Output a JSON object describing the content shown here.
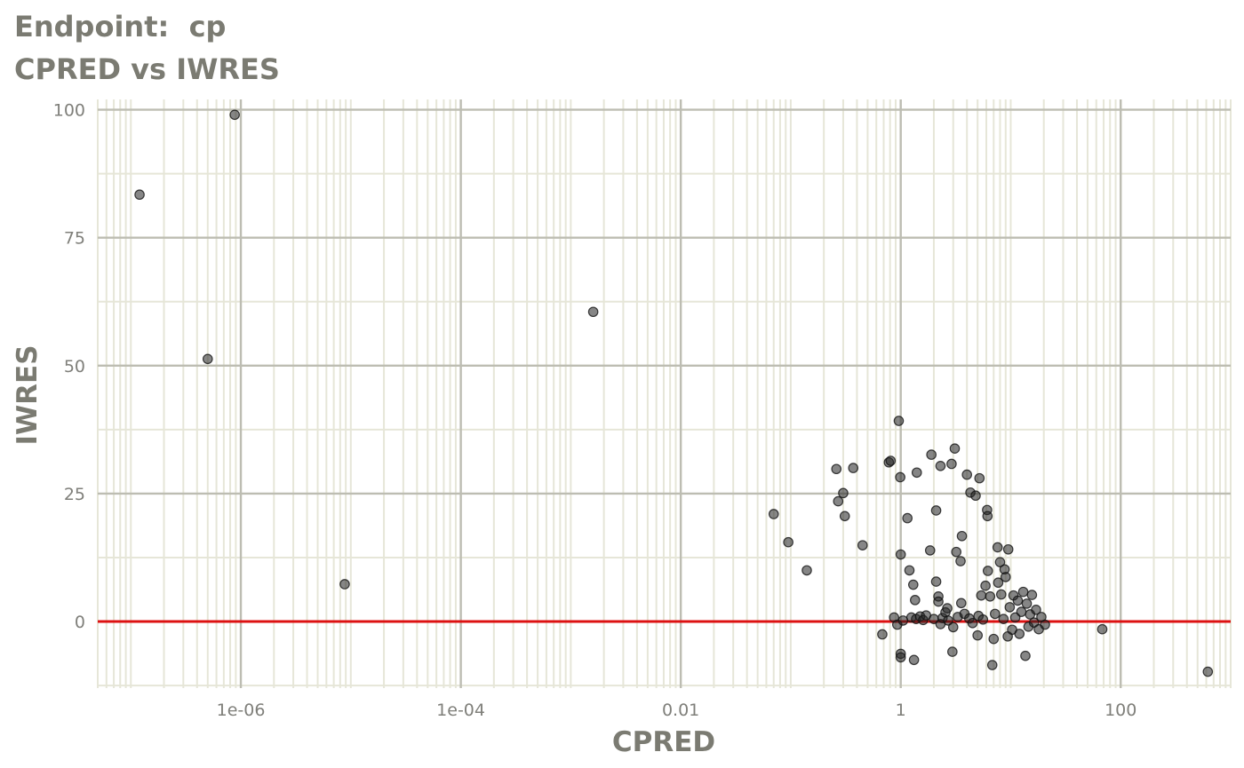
{
  "title_line1": "Endpoint:  cp",
  "title_line2": "CPRED vs IWRES",
  "chart_data": {
    "type": "scatter",
    "title": "Endpoint:  cp",
    "subtitle": "CPRED vs IWRES",
    "xlabel": "CPRED",
    "ylabel": "IWRES",
    "x_scale": "log10",
    "xlim": [
      5e-08,
      1000
    ],
    "ylim": [
      -13,
      102
    ],
    "x_ticks": [
      {
        "value": 1e-06,
        "label": "1e-06"
      },
      {
        "value": 0.0001,
        "label": "1e-04"
      },
      {
        "value": 0.01,
        "label": "0.01"
      },
      {
        "value": 1,
        "label": "1"
      },
      {
        "value": 100,
        "label": "100"
      }
    ],
    "y_ticks": [
      {
        "value": 0,
        "label": "0"
      },
      {
        "value": 25,
        "label": "25"
      },
      {
        "value": 50,
        "label": "50"
      },
      {
        "value": 75,
        "label": "75"
      },
      {
        "value": 100,
        "label": "100"
      }
    ],
    "grid": true,
    "reference_line": {
      "y": 0,
      "color": "#dd1111"
    },
    "colors": {
      "point": "#222222",
      "major_grid": "#bdbdb2",
      "minor_grid": "#e6e6d8",
      "text": "#7b7b72"
    },
    "points": [
      {
        "x": 1.2e-07,
        "y": 83.4
      },
      {
        "x": 5e-07,
        "y": 51.3
      },
      {
        "x": 8.8e-07,
        "y": 99.0
      },
      {
        "x": 8.8e-06,
        "y": 7.3
      },
      {
        "x": 0.0016,
        "y": 60.5
      },
      {
        "x": 0.07,
        "y": 21.0
      },
      {
        "x": 0.095,
        "y": 15.5
      },
      {
        "x": 0.14,
        "y": 10.0
      },
      {
        "x": 0.26,
        "y": 29.8
      },
      {
        "x": 0.27,
        "y": 23.5
      },
      {
        "x": 0.3,
        "y": 25.1
      },
      {
        "x": 0.31,
        "y": 20.6
      },
      {
        "x": 0.37,
        "y": 30.0
      },
      {
        "x": 0.45,
        "y": 14.9
      },
      {
        "x": 0.68,
        "y": -2.5
      },
      {
        "x": 0.78,
        "y": 31.1
      },
      {
        "x": 0.81,
        "y": 31.4
      },
      {
        "x": 0.87,
        "y": 0.8
      },
      {
        "x": 0.93,
        "y": -0.6
      },
      {
        "x": 0.96,
        "y": 39.2
      },
      {
        "x": 0.99,
        "y": 28.2
      },
      {
        "x": 1.0,
        "y": 13.1
      },
      {
        "x": 1.0,
        "y": -6.3
      },
      {
        "x": 1.0,
        "y": -7.0
      },
      {
        "x": 1.05,
        "y": 0.2
      },
      {
        "x": 1.15,
        "y": 20.2
      },
      {
        "x": 1.2,
        "y": 10.0
      },
      {
        "x": 1.25,
        "y": 0.8
      },
      {
        "x": 1.3,
        "y": 7.2
      },
      {
        "x": 1.32,
        "y": -7.5
      },
      {
        "x": 1.35,
        "y": 4.2
      },
      {
        "x": 1.38,
        "y": 0.5
      },
      {
        "x": 1.4,
        "y": 29.1
      },
      {
        "x": 1.5,
        "y": 1.0
      },
      {
        "x": 1.6,
        "y": 0.3
      },
      {
        "x": 1.7,
        "y": 1.2
      },
      {
        "x": 1.85,
        "y": 13.9
      },
      {
        "x": 1.9,
        "y": 32.6
      },
      {
        "x": 2.0,
        "y": 0.5
      },
      {
        "x": 2.1,
        "y": 21.7
      },
      {
        "x": 2.1,
        "y": 7.8
      },
      {
        "x": 2.2,
        "y": 4.9
      },
      {
        "x": 2.2,
        "y": 3.9
      },
      {
        "x": 2.3,
        "y": 30.4
      },
      {
        "x": 2.3,
        "y": -0.5
      },
      {
        "x": 2.4,
        "y": 0.7
      },
      {
        "x": 2.55,
        "y": 1.8
      },
      {
        "x": 2.65,
        "y": 2.6
      },
      {
        "x": 2.7,
        "y": 0.2
      },
      {
        "x": 2.9,
        "y": 30.8
      },
      {
        "x": 2.95,
        "y": -5.9
      },
      {
        "x": 3.0,
        "y": -1.1
      },
      {
        "x": 3.1,
        "y": 33.8
      },
      {
        "x": 3.2,
        "y": 13.6
      },
      {
        "x": 3.3,
        "y": 0.9
      },
      {
        "x": 3.5,
        "y": 11.8
      },
      {
        "x": 3.55,
        "y": 3.6
      },
      {
        "x": 3.6,
        "y": 16.7
      },
      {
        "x": 3.8,
        "y": 1.5
      },
      {
        "x": 4.0,
        "y": 28.7
      },
      {
        "x": 4.2,
        "y": 0.6
      },
      {
        "x": 4.3,
        "y": 25.2
      },
      {
        "x": 4.5,
        "y": -0.3
      },
      {
        "x": 4.8,
        "y": 24.6
      },
      {
        "x": 5.0,
        "y": -2.7
      },
      {
        "x": 5.1,
        "y": 1.1
      },
      {
        "x": 5.2,
        "y": 28.0
      },
      {
        "x": 5.4,
        "y": 5.1
      },
      {
        "x": 5.6,
        "y": 0.4
      },
      {
        "x": 5.9,
        "y": 7.0
      },
      {
        "x": 6.1,
        "y": 21.8
      },
      {
        "x": 6.15,
        "y": 20.6
      },
      {
        "x": 6.2,
        "y": 9.9
      },
      {
        "x": 6.5,
        "y": 4.9
      },
      {
        "x": 6.8,
        "y": -8.5
      },
      {
        "x": 7.0,
        "y": -3.4
      },
      {
        "x": 7.2,
        "y": 1.5
      },
      {
        "x": 7.6,
        "y": 14.5
      },
      {
        "x": 7.7,
        "y": 7.6
      },
      {
        "x": 8.0,
        "y": 11.6
      },
      {
        "x": 8.2,
        "y": 5.3
      },
      {
        "x": 8.6,
        "y": 0.5
      },
      {
        "x": 8.8,
        "y": 10.2
      },
      {
        "x": 9.0,
        "y": 8.7
      },
      {
        "x": 9.4,
        "y": -2.9
      },
      {
        "x": 9.5,
        "y": 14.1
      },
      {
        "x": 9.8,
        "y": 2.8
      },
      {
        "x": 10.3,
        "y": -1.6
      },
      {
        "x": 10.6,
        "y": 5.1
      },
      {
        "x": 11.0,
        "y": 0.8
      },
      {
        "x": 11.6,
        "y": 4.1
      },
      {
        "x": 12.0,
        "y": -2.4
      },
      {
        "x": 12.5,
        "y": 1.9
      },
      {
        "x": 13.0,
        "y": 5.8
      },
      {
        "x": 13.6,
        "y": -6.7
      },
      {
        "x": 14.0,
        "y": 3.5
      },
      {
        "x": 14.5,
        "y": -1.0
      },
      {
        "x": 15.0,
        "y": 1.4
      },
      {
        "x": 15.6,
        "y": 5.2
      },
      {
        "x": 16.3,
        "y": -0.2
      },
      {
        "x": 17.0,
        "y": 2.3
      },
      {
        "x": 18.0,
        "y": -1.5
      },
      {
        "x": 19.0,
        "y": 0.9
      },
      {
        "x": 20.5,
        "y": -0.6
      },
      {
        "x": 68,
        "y": -1.5
      },
      {
        "x": 620,
        "y": -9.8
      }
    ]
  }
}
